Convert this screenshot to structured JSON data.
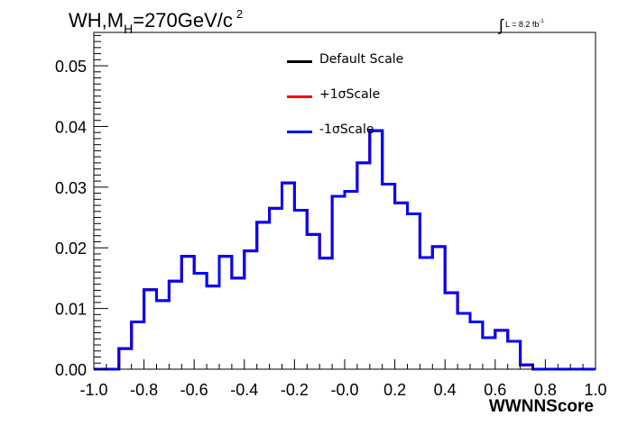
{
  "title": {
    "main": "WH,M",
    "sub": "H",
    "rest": "=270GeV/c",
    "sup": "2"
  },
  "lumi": {
    "symbol": "∫",
    "text": "L = 8.2 fb",
    "sup": "-1"
  },
  "chart_data": {
    "type": "line",
    "xlabel": "WWNNScore",
    "ylabel": "",
    "xlim": [
      -1.0,
      1.0
    ],
    "ylim": [
      0.0,
      0.0555
    ],
    "x_ticks": [
      "-1.0",
      "-0.8",
      "-0.6",
      "-0.4",
      "-0.2",
      "-0.0",
      "0.2",
      "0.4",
      "0.6",
      "0.8",
      "1.0"
    ],
    "y_ticks": [
      "0.00",
      "0.01",
      "0.02",
      "0.03",
      "0.04",
      "0.05"
    ],
    "bin_edges": [
      -1.0,
      -0.95,
      -0.9,
      -0.85,
      -0.8,
      -0.75,
      -0.7,
      -0.65,
      -0.6,
      -0.55,
      -0.5,
      -0.45,
      -0.4,
      -0.35,
      -0.3,
      -0.25,
      -0.2,
      -0.15,
      -0.1,
      -0.05,
      0.0,
      0.05,
      0.1,
      0.15,
      0.2,
      0.25,
      0.3,
      0.35,
      0.4,
      0.45,
      0.5,
      0.55,
      0.6,
      0.65,
      0.7,
      0.75,
      0.8,
      0.85,
      0.9,
      0.95,
      1.0
    ],
    "series": [
      {
        "name": "Default Scale",
        "color": "#000000",
        "values": [
          0,
          0,
          0.0034,
          0.0078,
          0.0131,
          0.0113,
          0.0145,
          0.0186,
          0.0158,
          0.0137,
          0.0186,
          0.015,
          0.0195,
          0.0242,
          0.0265,
          0.0307,
          0.0262,
          0.0222,
          0.0183,
          0.0285,
          0.0293,
          0.034,
          0.0393,
          0.0305,
          0.0274,
          0.0256,
          0.0184,
          0.0202,
          0.0126,
          0.0092,
          0.0078,
          0.0052,
          0.0064,
          0.0046,
          0.0007,
          0,
          0,
          0,
          0,
          0
        ]
      },
      {
        "name": "+1σScale",
        "color": "#ff0000",
        "values": [
          0,
          0,
          0.0034,
          0.0078,
          0.0131,
          0.0113,
          0.0145,
          0.0186,
          0.0158,
          0.0137,
          0.0186,
          0.015,
          0.0195,
          0.0242,
          0.0265,
          0.0307,
          0.0262,
          0.0222,
          0.0183,
          0.0285,
          0.0293,
          0.034,
          0.0393,
          0.0305,
          0.0274,
          0.0256,
          0.0184,
          0.0202,
          0.0126,
          0.0092,
          0.0078,
          0.0052,
          0.0064,
          0.0046,
          0.0007,
          0,
          0,
          0,
          0,
          0
        ]
      },
      {
        "name": "-1σScale",
        "color": "#0000ff",
        "values": [
          0,
          0,
          0.0034,
          0.0078,
          0.0131,
          0.0113,
          0.0145,
          0.0186,
          0.0158,
          0.0137,
          0.0186,
          0.015,
          0.0195,
          0.0242,
          0.0265,
          0.0307,
          0.0262,
          0.0222,
          0.0183,
          0.0285,
          0.0293,
          0.034,
          0.0393,
          0.0305,
          0.0274,
          0.0256,
          0.0184,
          0.0202,
          0.0126,
          0.0092,
          0.0078,
          0.0052,
          0.0064,
          0.0046,
          0.0007,
          0,
          0,
          0,
          0,
          0
        ]
      }
    ],
    "grid": false,
    "legend_position": "top-center"
  }
}
